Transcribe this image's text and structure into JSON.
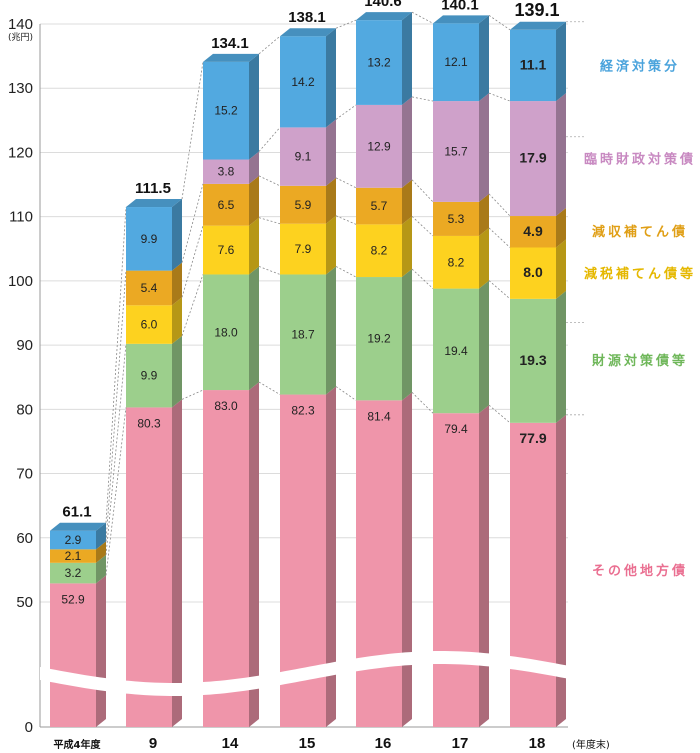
{
  "chart_data": {
    "type": "bar",
    "stacked": true,
    "y_unit_label": "(兆円)",
    "x_unit_label": "(年度末)",
    "ylim": [
      0,
      140
    ],
    "y_ticks": [
      "0",
      "50",
      "60",
      "70",
      "80",
      "90",
      "100",
      "110",
      "120",
      "130",
      "140"
    ],
    "axis_break": "0–50",
    "categories": [
      "平成4年度",
      "9",
      "14",
      "15",
      "16",
      "17",
      "18"
    ],
    "totals": [
      "61.1",
      "111.5",
      "134.1",
      "138.1",
      "140.6",
      "140.1",
      "139.1"
    ],
    "total_values": [
      61.1,
      111.5,
      134.1,
      138.1,
      140.6,
      140.1,
      139.1
    ],
    "series": [
      {
        "name": "その他地方債",
        "color": "#ef95aa",
        "values": [
          52.9,
          80.3,
          83.0,
          82.3,
          81.4,
          79.4,
          77.9
        ],
        "labels": [
          "52.9",
          "80.3",
          "83.0",
          "82.3",
          "81.4",
          "79.4",
          "77.9"
        ]
      },
      {
        "name": "財源対策債等",
        "color": "#9ccf8c",
        "values": [
          3.2,
          9.9,
          18.0,
          18.7,
          19.2,
          19.4,
          19.3
        ],
        "labels": [
          "3.2",
          "9.9",
          "18.0",
          "18.7",
          "19.2",
          "19.4",
          "19.3"
        ]
      },
      {
        "name": "減税補てん債等",
        "color": "#fdd21f",
        "values": [
          0,
          6.0,
          7.6,
          7.9,
          8.2,
          8.2,
          8.0
        ],
        "labels": [
          "",
          "6.0",
          "7.6",
          "7.9",
          "8.2",
          "8.2",
          "8.0"
        ]
      },
      {
        "name": "減収補てん債",
        "color": "#eba923",
        "values": [
          2.1,
          5.4,
          6.5,
          5.9,
          5.7,
          5.3,
          4.9
        ],
        "labels": [
          "2.1",
          "5.4",
          "6.5",
          "5.9",
          "5.7",
          "5.3",
          "4.9"
        ]
      },
      {
        "name": "臨時財政対策債",
        "color": "#cfa1ca",
        "values": [
          0,
          0,
          3.8,
          9.1,
          12.9,
          15.7,
          17.9
        ],
        "labels": [
          "",
          "",
          "3.8",
          "9.1",
          "12.9",
          "15.7",
          "17.9"
        ]
      },
      {
        "name": "経済対策分",
        "color": "#52a9e0",
        "values": [
          2.9,
          9.9,
          15.2,
          14.2,
          13.2,
          12.1,
          11.1
        ],
        "labels": [
          "2.9",
          "9.9",
          "15.2",
          "14.2",
          "13.2",
          "12.1",
          "11.1"
        ]
      }
    ],
    "legend_placement": "right",
    "legend_colors": [
      "#4aa3dc",
      "#c889c1",
      "#e09f16",
      "#e5b800",
      "#6fb75a",
      "#ea6f91"
    ],
    "grid": true
  }
}
